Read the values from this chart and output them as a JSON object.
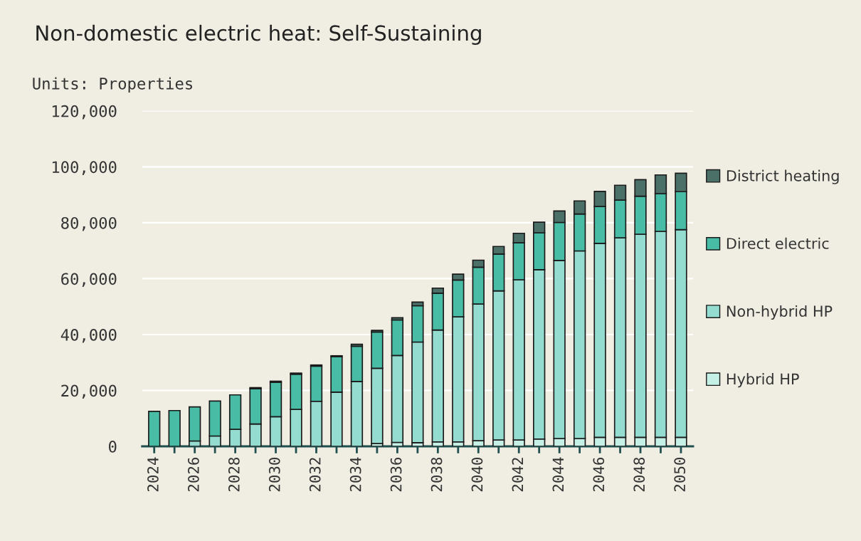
{
  "chart_data": {
    "type": "bar",
    "stacked": true,
    "title": "Non-domestic electric heat: Self-Sustaining",
    "subtitle": "Units: Properties",
    "categories": [
      "2024",
      null,
      "2026",
      null,
      "2028",
      null,
      "2030",
      null,
      "2032",
      null,
      "2034",
      null,
      "2036",
      null,
      "2038",
      null,
      "2040",
      null,
      "2042",
      null,
      "2044",
      null,
      "2046",
      null,
      "2048",
      null,
      "2050"
    ],
    "series": [
      {
        "name": "Hybrid HP",
        "color": "#c5f0e5",
        "values": [
          0,
          0,
          0,
          0,
          0,
          0,
          0,
          0,
          0,
          null,
          null,
          1000,
          1400,
          1300,
          1600,
          1600,
          2000,
          2300,
          2300,
          2600,
          2800,
          2800,
          3200,
          3200,
          3200,
          3200,
          3200
        ]
      },
      {
        "name": "Non-hybrid HP",
        "color": "#93dccf",
        "values": [
          0,
          null,
          1900,
          3700,
          6100,
          8000,
          10600,
          13200,
          16100,
          19400,
          23200,
          26900,
          31100,
          36000,
          40000,
          44700,
          48900,
          53300,
          57300,
          60600,
          63700,
          67100,
          69400,
          71400,
          72700,
          73700,
          74300
        ]
      },
      {
        "name": "Direct electric",
        "color": "#48bca4",
        "values": [
          12500,
          12800,
          12200,
          12500,
          12300,
          12600,
          12300,
          12600,
          12600,
          12700,
          12600,
          13000,
          12700,
          13000,
          13200,
          13200,
          13200,
          13200,
          13200,
          13200,
          13600,
          13200,
          13200,
          13500,
          13600,
          13500,
          13600
        ]
      },
      {
        "name": "District heating",
        "color": "#4a7068",
        "values": [
          0,
          0,
          0,
          0,
          0,
          400,
          400,
          400,
          400,
          300,
          700,
          600,
          800,
          1300,
          1800,
          2100,
          2500,
          2700,
          3400,
          3800,
          4100,
          4700,
          5400,
          5300,
          5900,
          6700,
          6600
        ]
      }
    ],
    "ylim": [
      0,
      120000
    ],
    "yticks": [
      {
        "value": 0,
        "label": "0"
      },
      {
        "value": 20000,
        "label": "20,000"
      },
      {
        "value": 40000,
        "label": "40,000"
      },
      {
        "value": 60000,
        "label": "60,000"
      },
      {
        "value": 80000,
        "label": "80,000"
      },
      {
        "value": 100000,
        "label": "100,000"
      },
      {
        "value": 120000,
        "label": "120,000"
      }
    ],
    "grid": "y",
    "legend": "right"
  }
}
